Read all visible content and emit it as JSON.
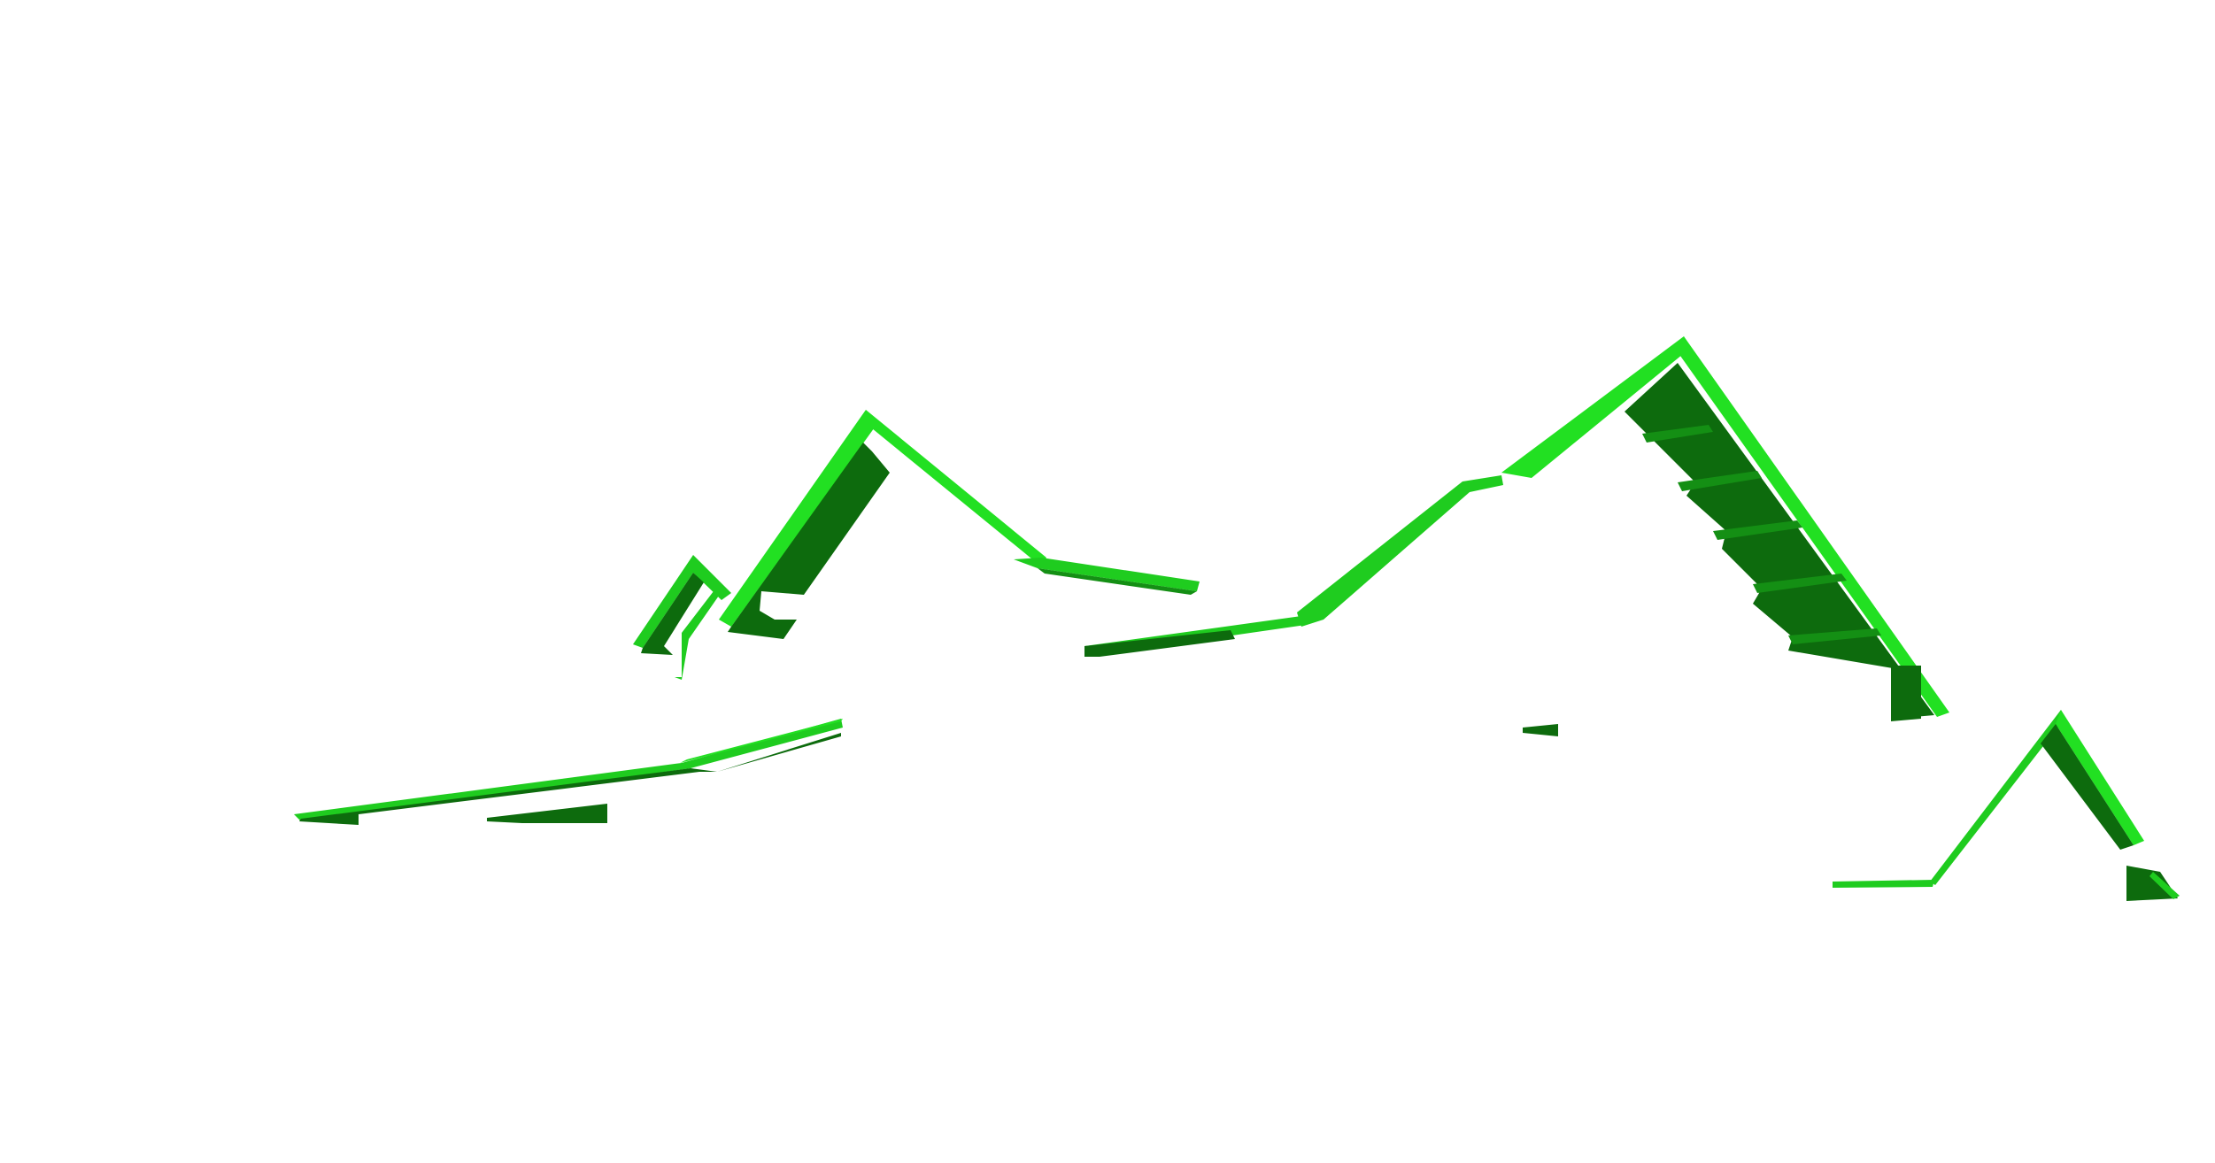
{
  "scene": {
    "background_color": "#ffffff",
    "roof_light_color": "#1fcc1f",
    "roof_bright_color": "#22e022",
    "roof_dark_color": "#0d6b0d",
    "roof_mid_color": "#148f14",
    "structures": [
      "roof-small-left",
      "roof-left-peak",
      "roof-center-long",
      "roof-main-peak",
      "roof-far-right",
      "roof-lower-left-eave"
    ]
  }
}
